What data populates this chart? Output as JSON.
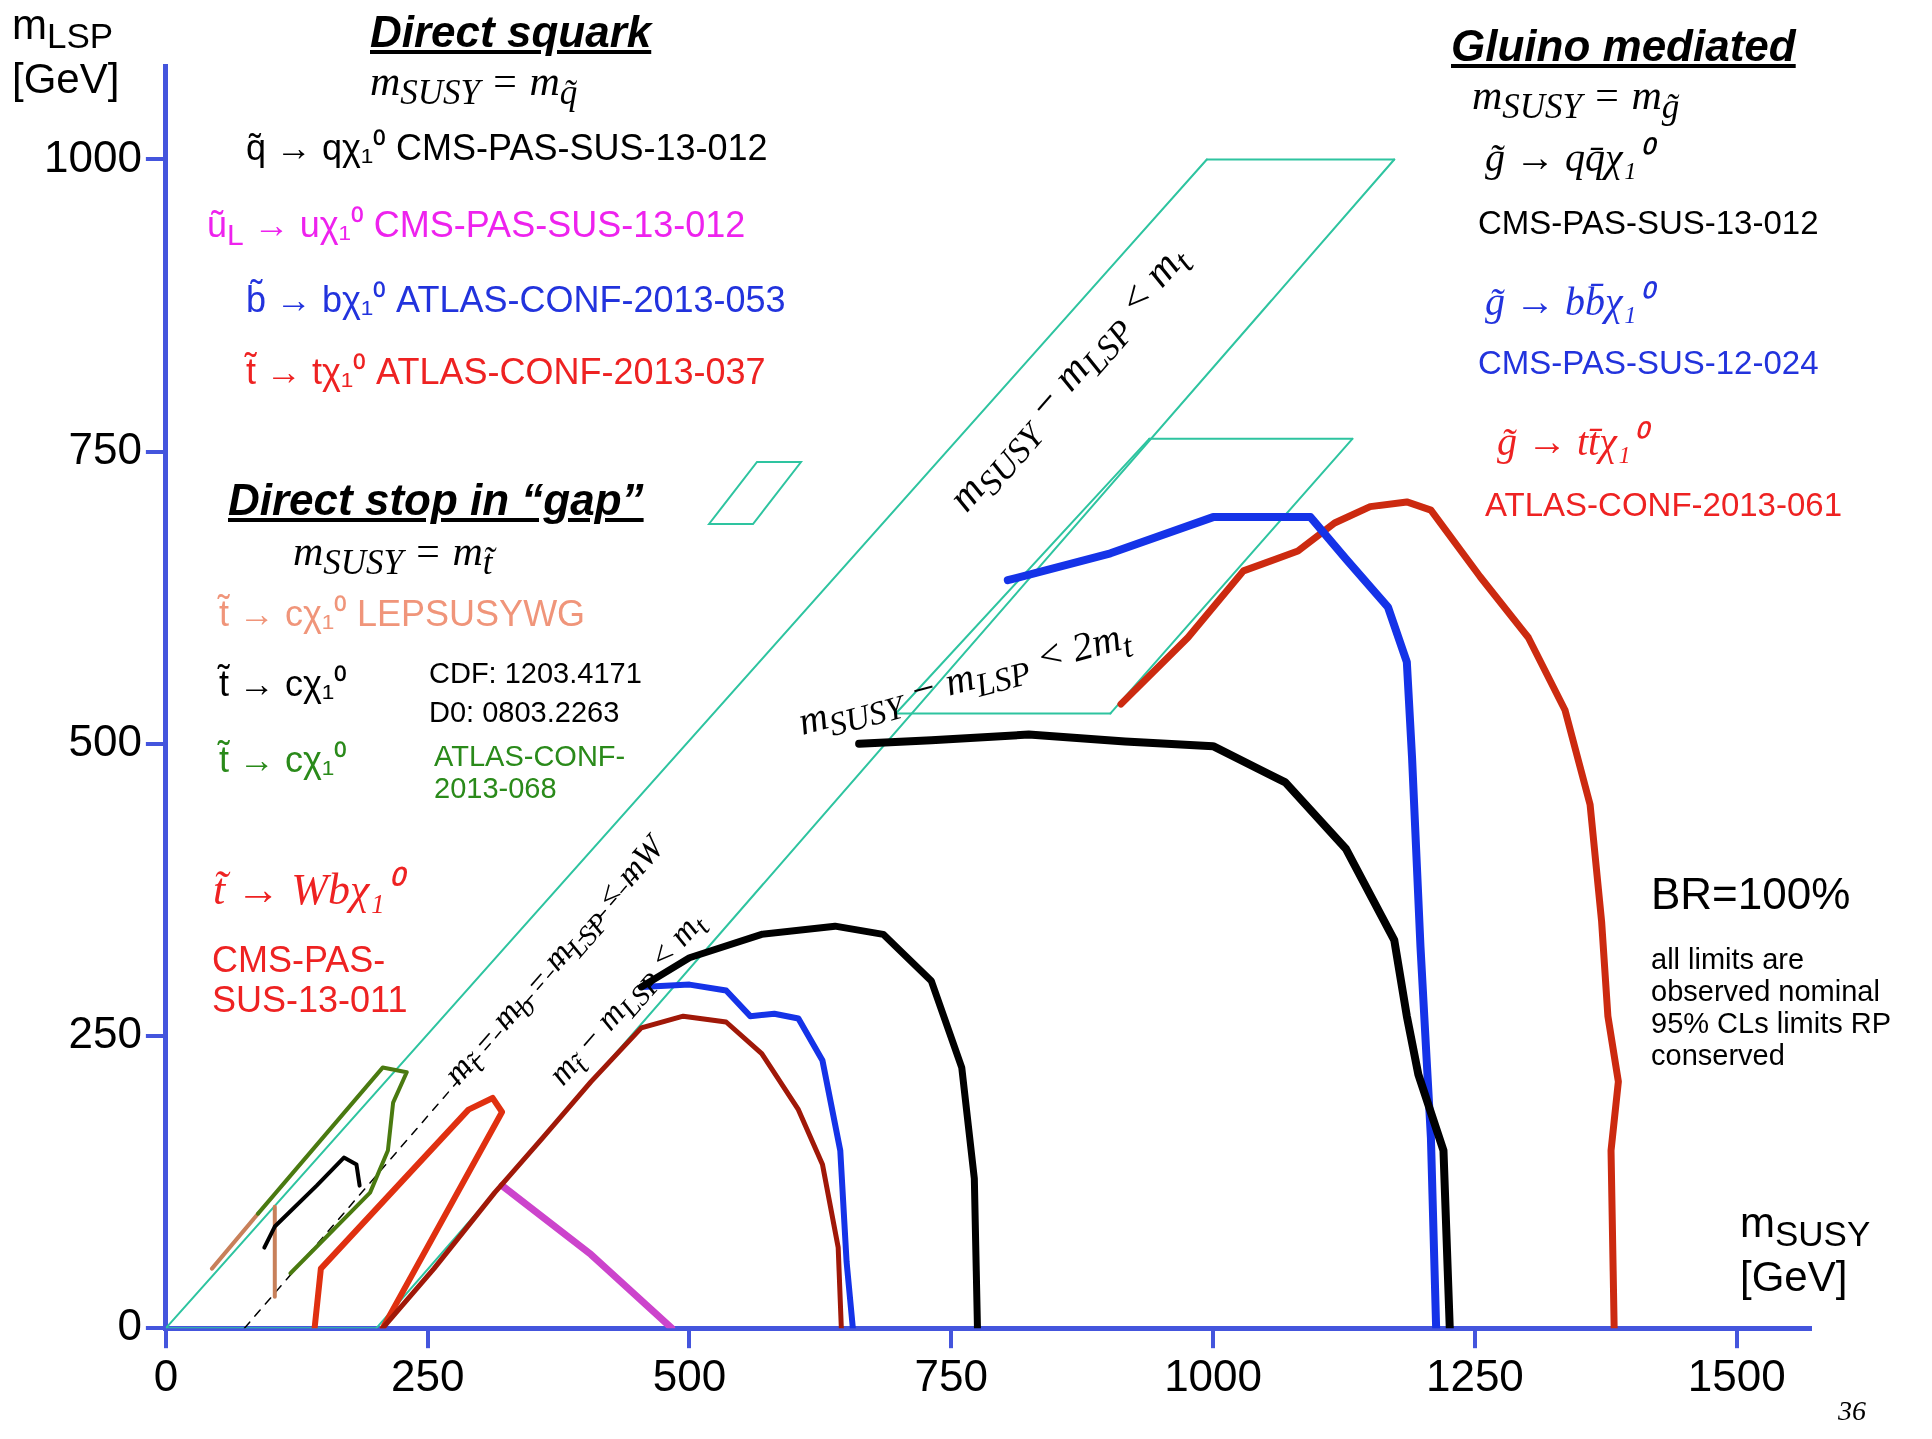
{
  "chart_data": {
    "type": "line",
    "xlabel": "m$_{SUSY}$ [GeV]",
    "ylabel": "m$_{LSP}$ [GeV]",
    "xlim": [
      0,
      1570
    ],
    "ylim": [
      0,
      1080
    ],
    "xticks": [
      0,
      250,
      500,
      750,
      1000,
      1250,
      1500
    ],
    "yticks": [
      0,
      250,
      500,
      750,
      1000
    ],
    "series": [
      {
        "color": "#000000",
        "x": [
          662,
          731,
          824,
          916,
          1000,
          1069,
          1127,
          1173,
          1185,
          1196,
          1220,
          1226
        ],
        "values": [
          500,
          503,
          508,
          502,
          498,
          467,
          410,
          332,
          267,
          217,
          152,
          0
        ]
      },
      {
        "color": "#1533e8",
        "x": [
          804,
          902,
          1000,
          1093,
          1127,
          1167,
          1185,
          1190,
          1198,
          1208,
          1213
        ],
        "values": [
          640,
          663,
          694,
          694,
          658,
          617,
          570,
          488,
          327,
          163,
          0
        ]
      },
      {
        "color": "#cc2a10",
        "x": [
          912,
          976,
          1029,
          1081,
          1116,
          1150,
          1185,
          1208,
          1255,
          1301,
          1336,
          1360,
          1371,
          1377,
          1387,
          1380,
          1383
        ],
        "values": [
          534,
          591,
          648,
          665,
          689,
          703,
          707,
          700,
          643,
          591,
          529,
          448,
          348,
          267,
          211,
          152,
          0
        ]
      },
      {
        "color": "#000000",
        "x": [
          454,
          500,
          569,
          639,
          685,
          731,
          760,
          772,
          775
        ],
        "values": [
          292,
          317,
          337,
          344,
          337,
          297,
          223,
          128,
          0
        ]
      },
      {
        "color": "#1533e8",
        "x": [
          454,
          500,
          535,
          558,
          581,
          604,
          627,
          644,
          650,
          656
        ],
        "values": [
          292,
          294,
          289,
          267,
          269,
          265,
          229,
          152,
          57,
          0
        ]
      },
      {
        "color": "#a01808",
        "x": [
          207,
          256,
          314,
          360,
          406,
          454,
          494,
          535,
          569,
          604,
          627,
          642,
          645
        ],
        "values": [
          0,
          51,
          116,
          163,
          211,
          257,
          267,
          262,
          235,
          187,
          140,
          69,
          0
        ]
      },
      {
        "color": "#cc44cc",
        "x": [
          321,
          406,
          483
        ],
        "values": [
          122,
          63,
          0
        ]
      },
      {
        "color": "#e03010",
        "x": [
          142,
          148,
          289,
          312,
          321,
          207
        ],
        "values": [
          0,
          51,
          187,
          197,
          185,
          0
        ]
      },
      {
        "color": "#4a7a10",
        "x": [
          88,
          207,
          230,
          217,
          212,
          195,
          119
        ],
        "values": [
          98,
          223,
          219,
          193,
          152,
          116,
          47
        ]
      },
      {
        "color": "#000000",
        "x": [
          94,
          104,
          144,
          170,
          182,
          185
        ],
        "values": [
          69,
          87,
          122,
          146,
          140,
          122
        ]
      },
      {
        "color": "#c8805a",
        "x": [
          44,
          88,
          96,
          104,
          104
        ],
        "values": [
          51,
          98,
          null,
          104,
          27
        ]
      },
      {
        "color": "#000000",
        "line_style": "dashed",
        "x": [
          75,
          454
        ],
        "values": [
          0,
          393
        ]
      },
      {
        "color": "#2ec4a0",
        "x": [
          0,
          994
        ],
        "values": [
          0,
          1000
        ]
      },
      {
        "color": "#2ec4a0",
        "x": [
          994,
          1173
        ],
        "values": [
          1000,
          1000
        ]
      },
      {
        "color": "#2ec4a0",
        "x": [
          201,
          1173
        ],
        "values": [
          0,
          1000
        ]
      },
      {
        "color": "#2ec4a0",
        "x": [
          0,
          201
        ],
        "values": [
          0,
          0
        ]
      },
      {
        "color": "#2ec4a0",
        "x": [
          697,
          939
        ],
        "values": [
          526,
          761
        ]
      },
      {
        "color": "#2ec4a0",
        "x": [
          939,
          1133
        ],
        "values": [
          761,
          761
        ]
      },
      {
        "color": "#2ec4a0",
        "x": [
          902,
          1133
        ],
        "values": [
          526,
          761
        ]
      },
      {
        "color": "#2ec4a0",
        "x": [
          697,
          902
        ],
        "values": [
          526,
          526
        ]
      }
    ],
    "annotations": [
      "Direct squark",
      "m$_{SUSY}$ = m$_{q̃}$",
      "q̃ → qχ₁⁰ CMS-PAS-SUS-13-012",
      "ũ$_{L}$ → uχ₁⁰ CMS-PAS-SUS-13-012",
      "b̃ → bχ₁⁰ ATLAS-CONF-2013-053",
      "t̃ → tχ₁⁰ ATLAS-CONF-2013-037",
      "Direct stop in “gap”",
      "m$_{SUSY}$ = m$_{t̃}$",
      "t̃ → cχ₁⁰ LEPSUSYWG",
      "t̃ → cχ₁⁰",
      "CDF: 1203.4171",
      "D0: 0803.2263",
      "t̃ → cχ₁⁰",
      "ATLAS-CONF-2013-068",
      "t̃ → Wbχ₁⁰",
      "CMS-PAS-SUS-13-011",
      "Gluino mediated",
      "m$_{SUSY}$ = m$_{g̃}$",
      "g̃ → qq̄χ₁⁰",
      "CMS-PAS-SUS-13-012",
      "g̃ → bb̄χ₁⁰",
      "CMS-PAS-SUS-12-024",
      "g̃ → tt̄χ₁⁰",
      "ATLAS-CONF-2013-061",
      "BR=100%",
      "all limits are observed nominal 95% CLs limits RP conserved",
      "36",
      "m$_{SUSY}$ − m$_{LSP}$ < m$_{t}$",
      "m$_{SUSY}$ − m$_{LSP}$ < 2m$_{t}$",
      "m$_{t̃}$ − m$_{b}$ − m$_{LSP}$ < mW",
      "m$_{t̃}$ − m$_{LSP}$ < m$_{t}$"
    ]
  }
}
